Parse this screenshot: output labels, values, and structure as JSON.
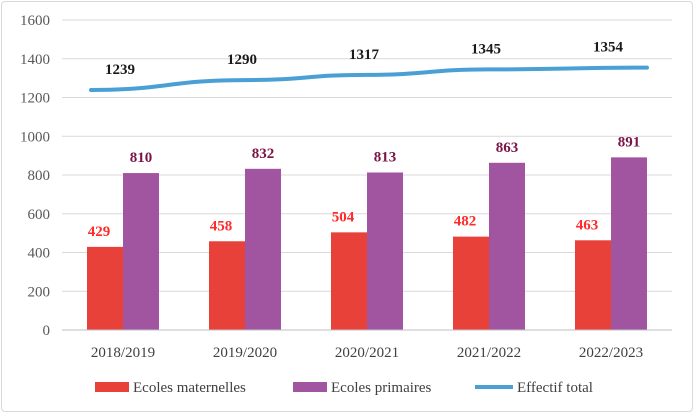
{
  "chart_data": {
    "type": "bar",
    "categories": [
      "2018/2019",
      "2019/2020",
      "2020/2021",
      "2021/2022",
      "2022/2023"
    ],
    "series": [
      {
        "name": "Ecoles maternelles",
        "type": "bar",
        "color": "#e8413a",
        "label_color": "#ff2a2a",
        "values": [
          429,
          458,
          504,
          482,
          463
        ]
      },
      {
        "name": "Ecoles primaires",
        "type": "bar",
        "color": "#a154a0",
        "label_color": "#7a1446",
        "values": [
          810,
          832,
          813,
          863,
          891
        ]
      },
      {
        "name": "Effectif total",
        "type": "line",
        "color": "#4a9fd4",
        "label_color": "#1a1a1a",
        "values": [
          1239,
          1290,
          1317,
          1345,
          1354
        ]
      }
    ],
    "ylim": [
      0,
      1600
    ],
    "yticks": [
      0,
      200,
      400,
      600,
      800,
      1000,
      1200,
      1400,
      1600
    ],
    "grid": true,
    "legend_position": "bottom"
  }
}
